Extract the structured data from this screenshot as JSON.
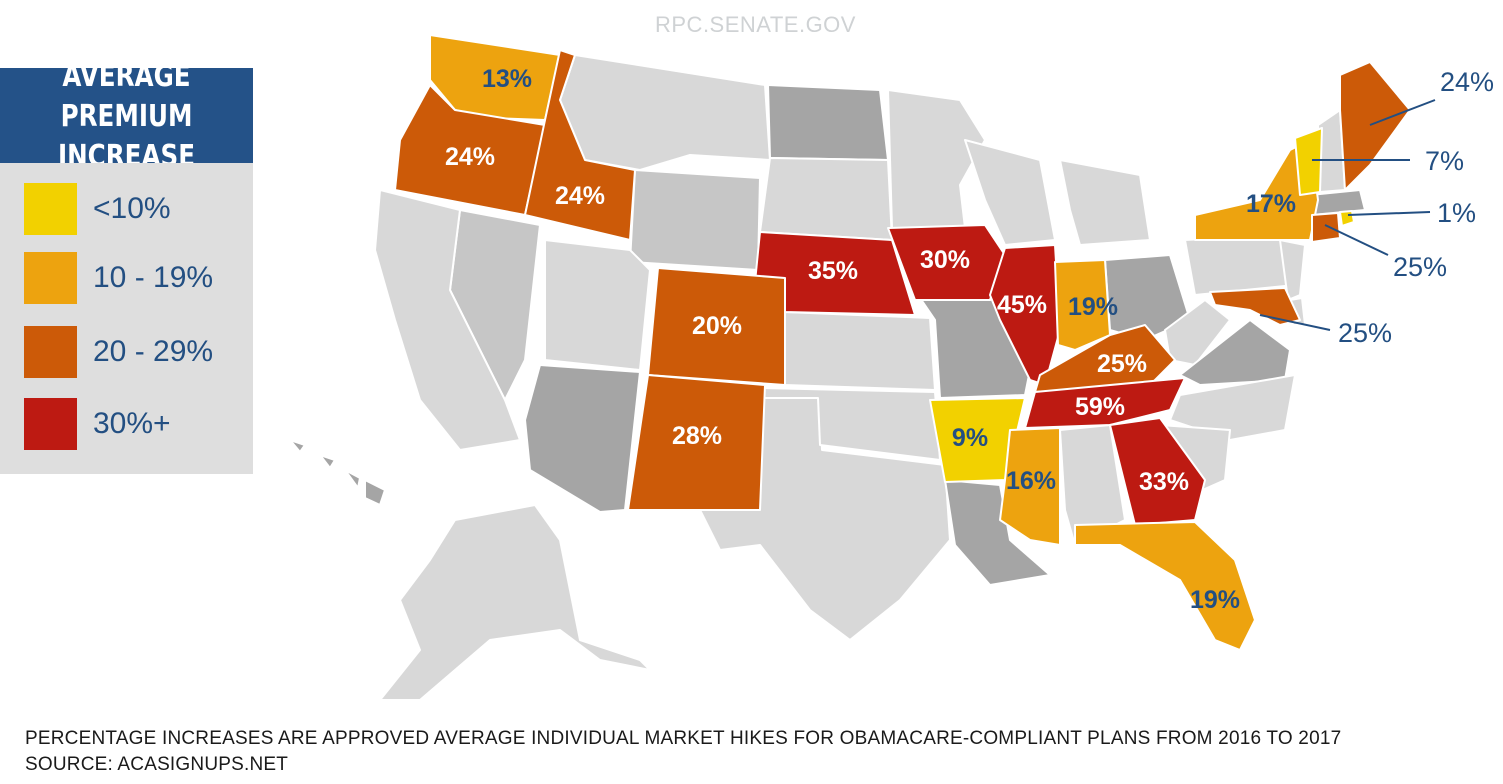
{
  "watermark": "RPC.SENATE.GOV",
  "legend": {
    "title": "AVERAGE PREMIUM INCREASE",
    "items": [
      {
        "label": "<10%",
        "color": "#f2d100"
      },
      {
        "label": "10 - 19%",
        "color": "#eda30f"
      },
      {
        "label": "20 - 29%",
        "color": "#cc5a08"
      },
      {
        "label": "30%+",
        "color": "#bd1a12"
      }
    ]
  },
  "colors": {
    "gray_light": "#d8d8d8",
    "gray_medium": "#c6c6c6",
    "gray_dark": "#a5a5a5",
    "label_blue": "#234f82",
    "label_white": "#ffffff"
  },
  "states": {
    "WA": {
      "label": "13%",
      "category": "10 - 19%"
    },
    "OR": {
      "label": "24%",
      "category": "20 - 29%"
    },
    "ID": {
      "label": "24%",
      "category": "20 - 29%"
    },
    "NE": {
      "label": "35%",
      "category": "30%+"
    },
    "CO": {
      "label": "20%",
      "category": "20 - 29%"
    },
    "NM": {
      "label": "28%",
      "category": "20 - 29%"
    },
    "IA": {
      "label": "30%",
      "category": "30%+"
    },
    "IL": {
      "label": "45%",
      "category": "30%+"
    },
    "IN": {
      "label": "19%",
      "category": "10 - 19%"
    },
    "KY": {
      "label": "25%",
      "category": "20 - 29%"
    },
    "TN": {
      "label": "59%",
      "category": "30%+"
    },
    "AR": {
      "label": "9%",
      "category": "<10%"
    },
    "MS": {
      "label": "16%",
      "category": "10 - 19%"
    },
    "GA": {
      "label": "33%",
      "category": "30%+"
    },
    "FL": {
      "label": "19%",
      "category": "10 - 19%"
    },
    "NY": {
      "label": "17%",
      "category": "10 - 19%"
    },
    "ME": {
      "label": "24%",
      "category": "20 - 29%"
    },
    "VT": {
      "label": "7%",
      "category": "<10%"
    },
    "RI": {
      "label": "1%",
      "category": "<10%"
    },
    "CT": {
      "label": "25%",
      "category": "20 - 29%"
    },
    "MD": {
      "label": "25%",
      "category": "20 - 29%"
    }
  },
  "footnote": {
    "line1": "PERCENTAGE INCREASES ARE APPROVED AVERAGE INDIVIDUAL MARKET HIKES FOR OBAMACARE-COMPLIANT PLANS FROM 2016 TO 2017",
    "line2": "SOURCE: ACASIGNUPS.NET"
  }
}
